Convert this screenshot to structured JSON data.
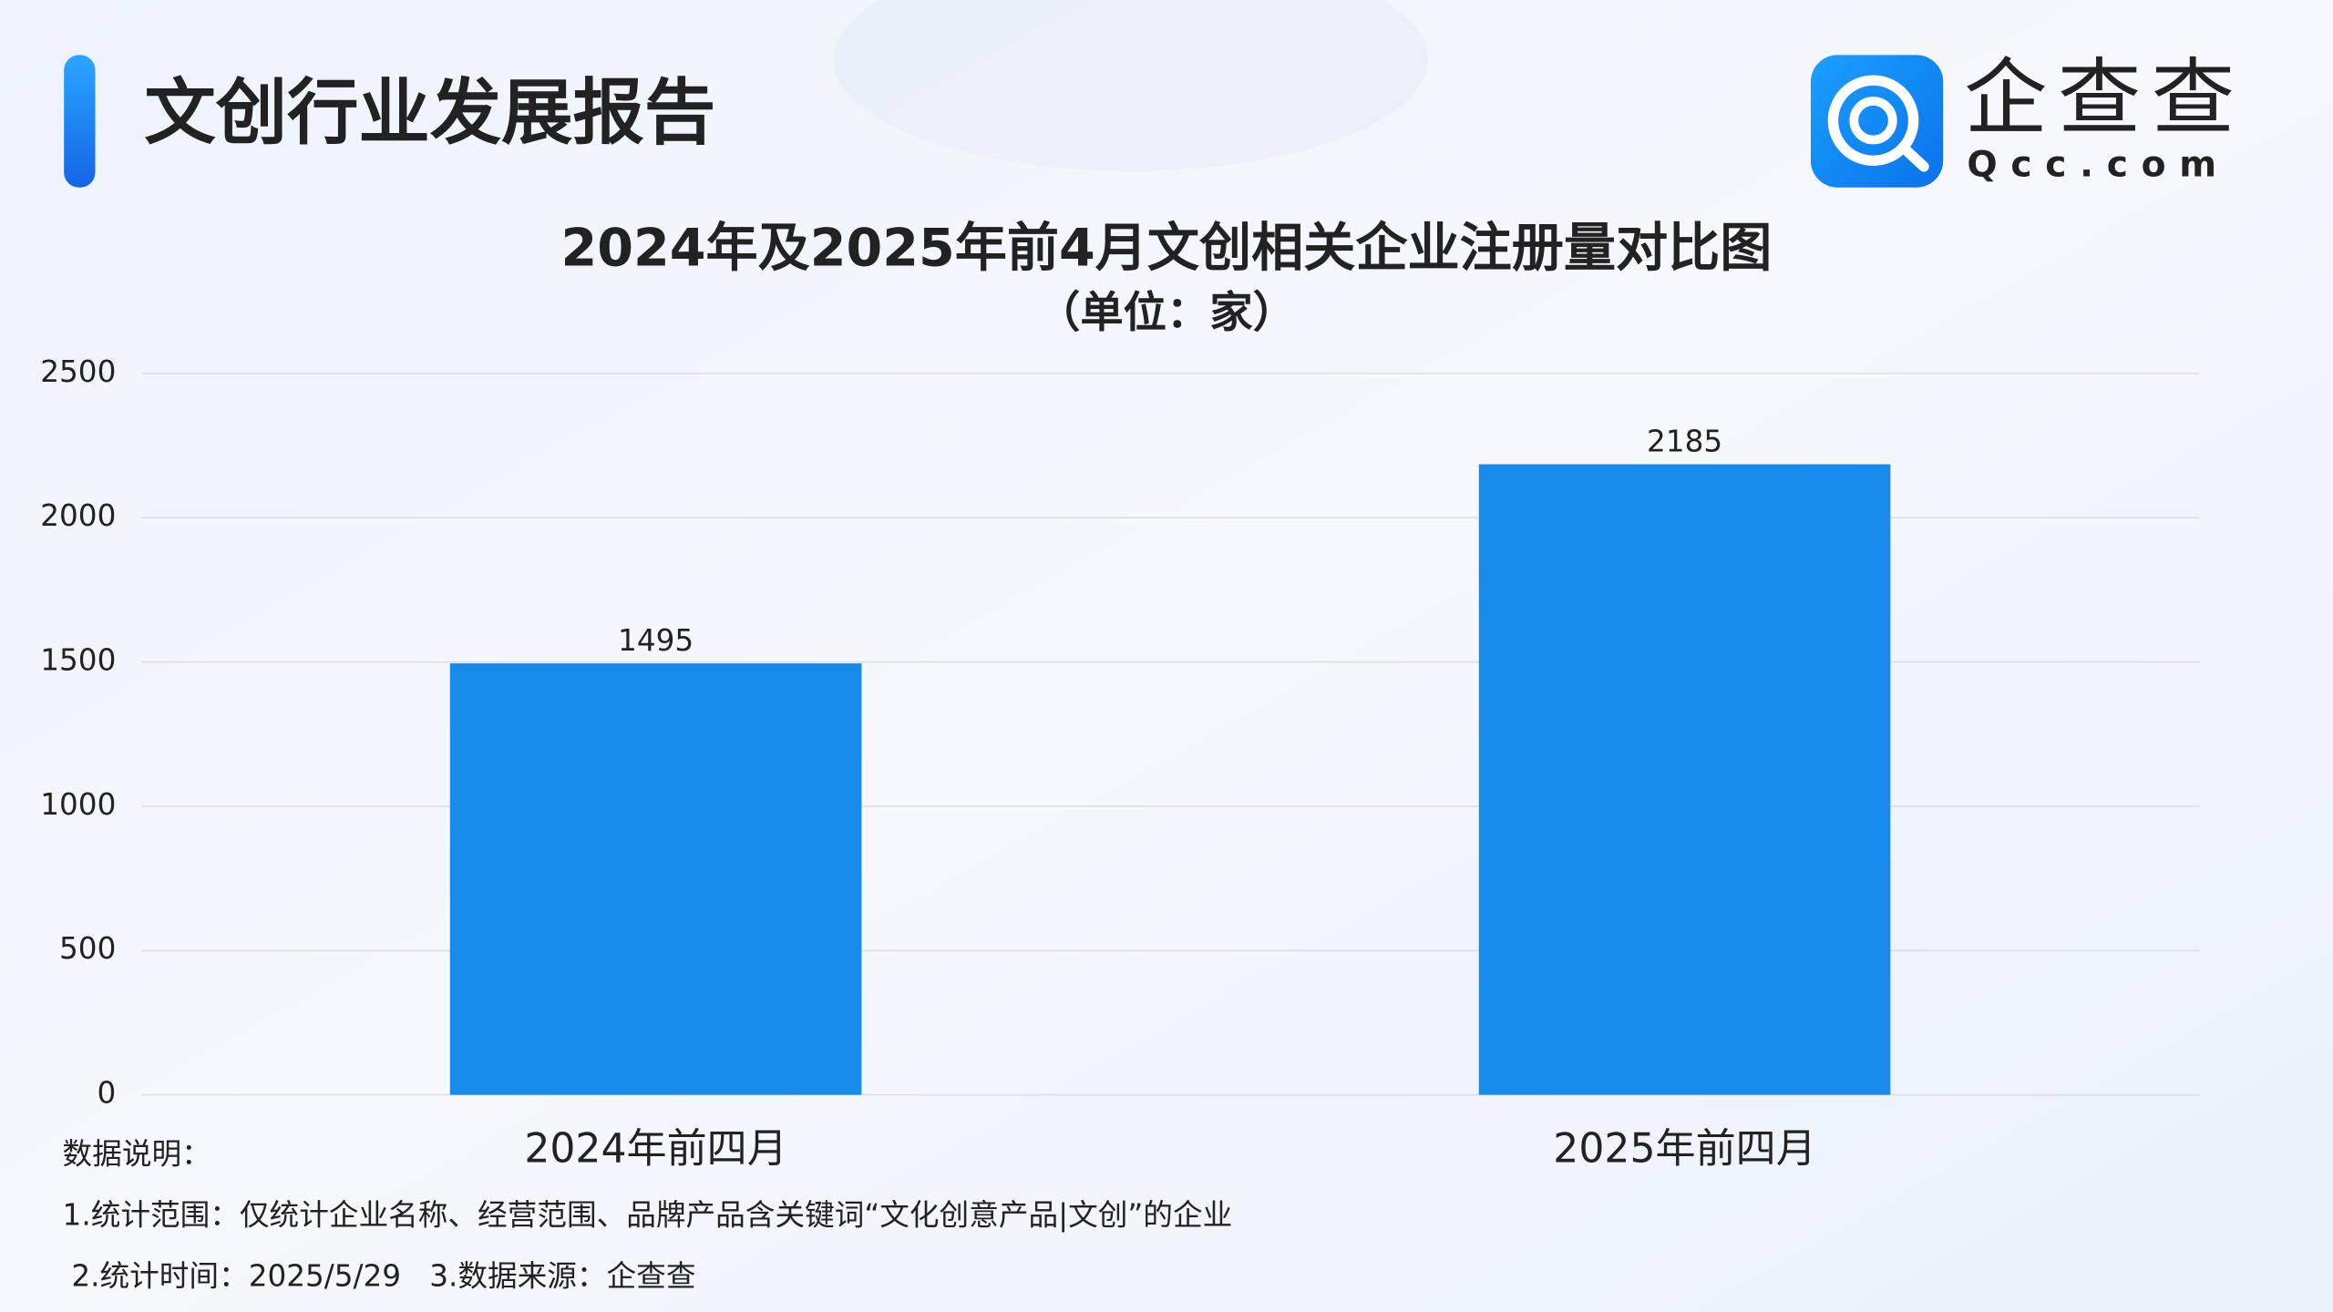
{
  "header": {
    "title": "文创行业发展报告",
    "logo_name": "企查查",
    "logo_domain": "Qcc.com"
  },
  "chart_data": {
    "type": "bar",
    "title": "2024年及2025年前4月文创相关企业注册量对比图",
    "subtitle": "（单位：家）",
    "categories": [
      "2024年前四月",
      "2025年前四月"
    ],
    "values": [
      1495,
      2185
    ],
    "color": "#1689ea",
    "ylim": [
      0,
      2500
    ],
    "yticks": [
      0,
      500,
      1000,
      1500,
      2000,
      2500
    ],
    "grid": true
  },
  "notes": {
    "heading": "数据说明：",
    "lines": [
      "1.统计范围：仅统计企业名称、经营范围、品牌产品含关键词“文化创意产品|文创”的企业",
      "2.统计时间：2025/5/29   3.数据来源：企查查"
    ]
  }
}
